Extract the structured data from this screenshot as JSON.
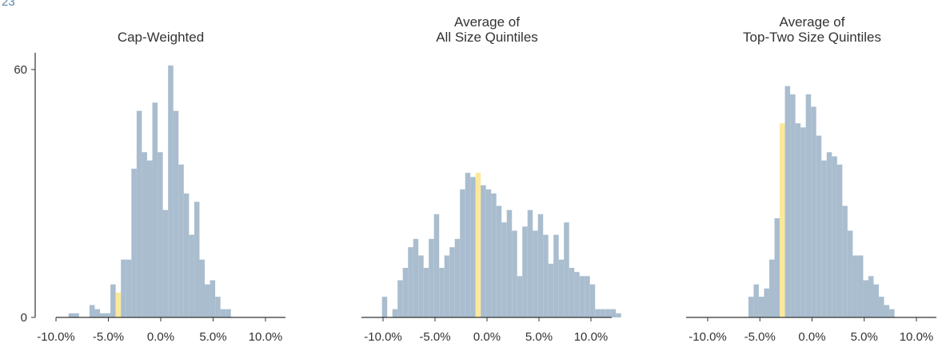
{
  "page_corner_text": "23",
  "colors": {
    "bar": "#a9bdcf",
    "highlight": "#fbe89b",
    "axis": "#333333",
    "text": "#333333"
  },
  "chart_data": [
    {
      "type": "bar",
      "title": "Cap-Weighted",
      "xlabel": "",
      "ylabel": "",
      "xlim": [
        -12,
        12
      ],
      "ylim": [
        0,
        64
      ],
      "x_ticks": [
        -10,
        -5,
        0,
        5,
        10
      ],
      "x_tick_labels": [
        "-10.0%",
        "-5.0%",
        "0.0%",
        "5.0%",
        "10.0%"
      ],
      "y_ticks": [
        0,
        60
      ],
      "y_tick_labels": [
        "0",
        "60"
      ],
      "bin_start": -8.8,
      "bin_width": 0.5,
      "values": [
        1,
        1,
        0,
        0,
        3,
        2,
        1,
        1,
        8,
        6,
        14,
        14,
        36,
        50,
        40,
        38,
        52,
        40,
        26,
        61,
        50,
        37,
        30,
        20,
        28,
        14,
        8,
        9,
        5,
        2,
        2
      ],
      "highlight_bin_index": 9,
      "grid": false
    },
    {
      "type": "bar",
      "title": "Average of\nAll Size Quintiles",
      "xlabel": "",
      "ylabel": "",
      "xlim": [
        -12,
        12
      ],
      "ylim": [
        0,
        64
      ],
      "x_ticks": [
        -10,
        -5,
        0,
        5,
        10
      ],
      "x_tick_labels": [
        "-10.0%",
        "-5.0%",
        "0.0%",
        "5.0%",
        "10.0%"
      ],
      "y_ticks": [],
      "y_tick_labels": [],
      "bin_start": -10.1,
      "bin_width": 0.5,
      "values": [
        5,
        0,
        2,
        9,
        12,
        17,
        19,
        15,
        12,
        19,
        25,
        12,
        15,
        17,
        19,
        31,
        35,
        34,
        35,
        32,
        31,
        30,
        27,
        23,
        26,
        21,
        10,
        22,
        26,
        21,
        25,
        20,
        13,
        20,
        14,
        23,
        12,
        11,
        10,
        10,
        8,
        2,
        2,
        2,
        2,
        1
      ],
      "highlight_bin_index": 18,
      "grid": false
    },
    {
      "type": "bar",
      "title": "Average of\nTop-Two Size Quintiles",
      "xlabel": "",
      "ylabel": "",
      "xlim": [
        -12,
        12
      ],
      "ylim": [
        0,
        64
      ],
      "x_ticks": [
        -10,
        -5,
        0,
        5,
        10
      ],
      "x_tick_labels": [
        "-10.0%",
        "-5.0%",
        "0.0%",
        "5.0%",
        "10.0%"
      ],
      "y_ticks": [],
      "y_tick_labels": [],
      "bin_start": -6.1,
      "bin_width": 0.5,
      "values": [
        5,
        8,
        5,
        7,
        14,
        24,
        47,
        56,
        54,
        47,
        46,
        54,
        51,
        44,
        38,
        40,
        39,
        37,
        27,
        21,
        15,
        15,
        9,
        10,
        8,
        5,
        3,
        2
      ],
      "highlight_bin_index": 6,
      "grid": false
    }
  ]
}
